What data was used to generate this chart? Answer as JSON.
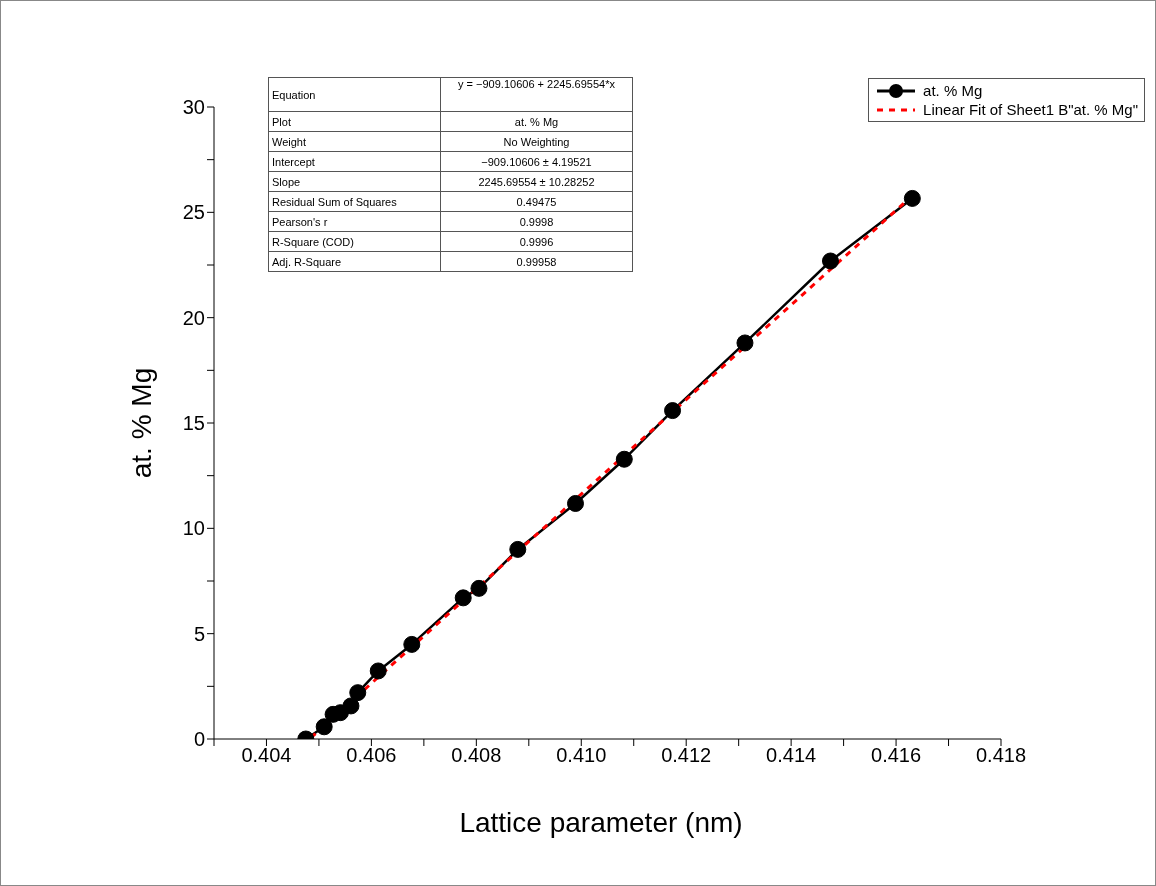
{
  "chart_data": {
    "type": "line",
    "xlabel": "Lattice parameter (nm)",
    "ylabel": "at. % Mg",
    "xlim": [
      0.403,
      0.418
    ],
    "ylim": [
      0,
      30
    ],
    "xticks": [
      {
        "value": 0.403,
        "label": null
      },
      0.404,
      {
        "value": 0.405,
        "label": null
      },
      0.406,
      {
        "value": 0.407,
        "label": null
      },
      0.408,
      {
        "value": 0.409,
        "label": null
      },
      {
        "value": 0.41,
        "label": "0.410"
      },
      {
        "value": 0.411,
        "label": null
      },
      0.412,
      {
        "value": 0.413,
        "label": null
      },
      0.414,
      {
        "value": 0.415,
        "label": null
      },
      0.416,
      {
        "value": 0.417,
        "label": null
      },
      0.418
    ],
    "yticks": [
      0,
      {
        "value": 2.5,
        "label": null
      },
      5,
      {
        "value": 7.5,
        "label": null
      },
      10,
      {
        "value": 12.5,
        "label": null
      },
      15,
      {
        "value": 17.5,
        "label": null
      },
      20,
      {
        "value": 22.5,
        "label": null
      },
      25,
      {
        "value": 27.5,
        "label": null
      },
      30
    ],
    "grid": false,
    "legend": "top right",
    "series": [
      {
        "name": "at. % Mg",
        "color": "#000000",
        "marker": "circle",
        "line_style": "solid",
        "x": [
          0.40475,
          0.4051,
          0.40527,
          0.40541,
          0.40561,
          0.40574,
          0.40613,
          0.40677,
          0.40775,
          0.40805,
          0.40879,
          0.40989,
          0.41082,
          0.41174,
          0.41312,
          0.41475,
          0.41631
        ],
        "values": [
          0,
          0.58,
          1.17,
          1.25,
          1.57,
          2.2,
          3.23,
          4.49,
          6.7,
          7.15,
          9.0,
          11.18,
          13.28,
          15.59,
          18.8,
          22.69,
          25.66
        ]
      },
      {
        "name": "Linear Fit of Sheet1 B\"at. % Mg\"",
        "color": "#ff0000",
        "marker": "none",
        "line_style": "dashed",
        "x": [
          0.40485,
          0.41635
        ],
        "values": [
          0.06,
          25.88
        ]
      }
    ],
    "annotations": [
      "Equation",
      "y = −909.10606 + 2245.69554*x",
      "Plot",
      "at. % Mg",
      "Weight",
      "No Weighting",
      "Intercept",
      "−909.10606 ± 4.19521",
      "Slope",
      "2245.69554 ± 10.28252",
      "Residual Sum of Squares",
      "0.49475",
      "Pearson's r",
      "0.9998",
      "R-Square (COD)",
      "0.9996",
      "Adj. R-Square",
      "0.99958"
    ]
  }
}
